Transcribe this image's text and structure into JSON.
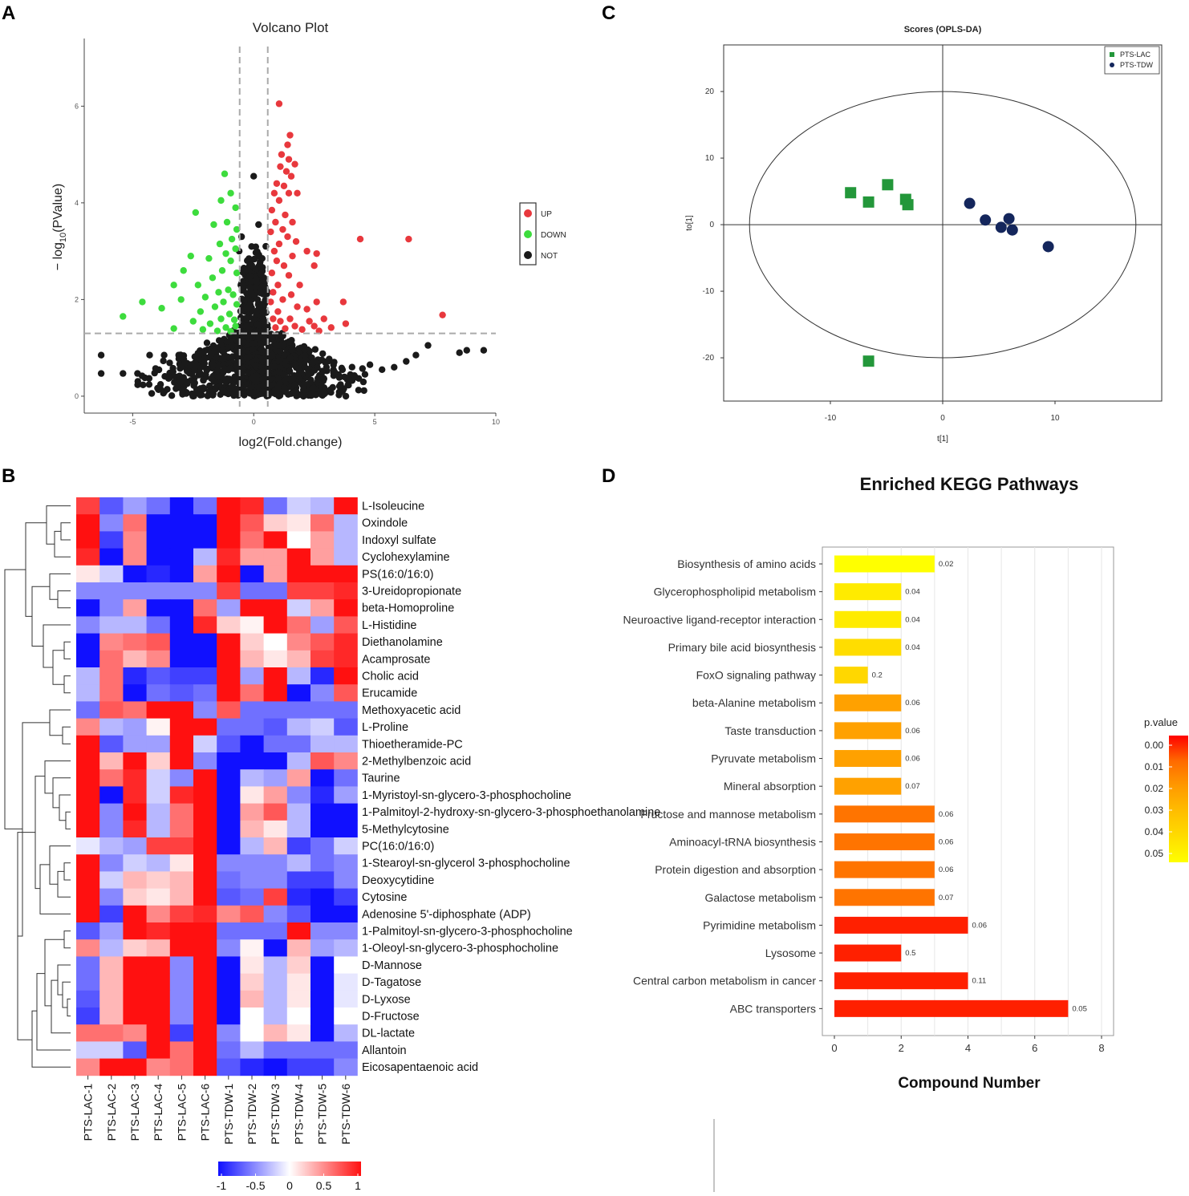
{
  "colors": {
    "up": "#e8383d",
    "down": "#3ddc3d",
    "not": "#1a1a1a",
    "lac": "#23973a",
    "tdw": "#14265c",
    "heat_low": "#1010ff",
    "heat_mid": "#ffffff",
    "heat_high": "#ff1010",
    "kegg_grad": [
      "#ff0000",
      "#ff6a00",
      "#ff9a00",
      "#ffbe00",
      "#ffdd00",
      "#ffff00"
    ]
  },
  "panels": {
    "a": "A",
    "b": "B",
    "c": "C",
    "d": "D"
  },
  "chart_data": [
    {
      "id": "volcano",
      "type": "scatter",
      "title": "Volcano Plot",
      "xlabel": "log2(Fold.change)",
      "ylabel_pre": "− log",
      "ylabel_sub": "10",
      "ylabel_post": "(PValue)",
      "xlim": [
        -7,
        10
      ],
      "ylim": [
        -0.35,
        7.4
      ],
      "xticks": [
        -5,
        0,
        5,
        10
      ],
      "yticks": [
        0,
        2,
        4,
        6
      ],
      "vlines": [
        -0.58,
        0.58
      ],
      "hline": 1.3,
      "legend": [
        "UP",
        "DOWN",
        "NOT"
      ],
      "up": [
        [
          1.05,
          6.05
        ],
        [
          1.5,
          5.4
        ],
        [
          1.4,
          5.2
        ],
        [
          1.15,
          5.0
        ],
        [
          1.45,
          4.9
        ],
        [
          1.1,
          4.75
        ],
        [
          1.35,
          4.65
        ],
        [
          1.7,
          4.8
        ],
        [
          1.55,
          4.55
        ],
        [
          0.95,
          4.4
        ],
        [
          1.25,
          4.35
        ],
        [
          1.8,
          4.2
        ],
        [
          0.85,
          4.2
        ],
        [
          1.45,
          4.2
        ],
        [
          1.05,
          4.05
        ],
        [
          0.75,
          3.85
        ],
        [
          1.3,
          3.75
        ],
        [
          1.6,
          3.6
        ],
        [
          0.9,
          3.6
        ],
        [
          1.2,
          3.45
        ],
        [
          0.7,
          3.4
        ],
        [
          1.4,
          3.3
        ],
        [
          1.75,
          3.2
        ],
        [
          1.05,
          3.15
        ],
        [
          0.85,
          3.0
        ],
        [
          2.2,
          3.0
        ],
        [
          2.6,
          2.95
        ],
        [
          1.6,
          2.9
        ],
        [
          1.25,
          2.7
        ],
        [
          0.95,
          2.8
        ],
        [
          4.4,
          3.25
        ],
        [
          6.4,
          3.25
        ],
        [
          2.5,
          2.7
        ],
        [
          0.75,
          2.55
        ],
        [
          1.45,
          2.5
        ],
        [
          1.0,
          2.3
        ],
        [
          1.9,
          2.3
        ],
        [
          0.8,
          2.15
        ],
        [
          1.55,
          2.1
        ],
        [
          1.2,
          2.0
        ],
        [
          2.6,
          1.95
        ],
        [
          0.7,
          1.95
        ],
        [
          1.8,
          1.85
        ],
        [
          2.2,
          1.8
        ],
        [
          1.0,
          1.75
        ],
        [
          3.7,
          1.95
        ],
        [
          7.8,
          1.68
        ],
        [
          1.5,
          1.6
        ],
        [
          2.3,
          1.55
        ],
        [
          0.8,
          1.6
        ],
        [
          1.1,
          1.55
        ],
        [
          2.9,
          1.6
        ],
        [
          1.7,
          1.45
        ],
        [
          2.5,
          1.45
        ],
        [
          1.3,
          1.4
        ],
        [
          3.2,
          1.42
        ],
        [
          2.0,
          1.38
        ],
        [
          3.8,
          1.5
        ],
        [
          0.9,
          1.42
        ],
        [
          2.7,
          1.35
        ]
      ],
      "down": [
        [
          -1.2,
          4.6
        ],
        [
          -0.95,
          4.2
        ],
        [
          -1.35,
          4.05
        ],
        [
          -0.75,
          3.9
        ],
        [
          -2.4,
          3.8
        ],
        [
          -1.1,
          3.6
        ],
        [
          -1.65,
          3.55
        ],
        [
          -0.7,
          3.45
        ],
        [
          -0.9,
          3.25
        ],
        [
          -1.4,
          3.15
        ],
        [
          -0.75,
          3.05
        ],
        [
          -1.15,
          2.95
        ],
        [
          -2.6,
          2.9
        ],
        [
          -1.85,
          2.85
        ],
        [
          -0.95,
          2.8
        ],
        [
          -1.3,
          2.6
        ],
        [
          -2.9,
          2.6
        ],
        [
          -0.7,
          2.55
        ],
        [
          -1.7,
          2.45
        ],
        [
          -3.3,
          2.3
        ],
        [
          -2.3,
          2.3
        ],
        [
          -1.05,
          2.2
        ],
        [
          -1.45,
          2.15
        ],
        [
          -0.85,
          2.1
        ],
        [
          -2.0,
          2.05
        ],
        [
          -3.0,
          2.0
        ],
        [
          -1.25,
          1.95
        ],
        [
          -0.7,
          1.9
        ],
        [
          -4.6,
          1.95
        ],
        [
          -1.6,
          1.85
        ],
        [
          -2.2,
          1.75
        ],
        [
          -3.8,
          1.82
        ],
        [
          -1.0,
          1.7
        ],
        [
          -1.35,
          1.6
        ],
        [
          -0.8,
          1.58
        ],
        [
          -5.4,
          1.65
        ],
        [
          -2.5,
          1.55
        ],
        [
          -1.8,
          1.5
        ],
        [
          -0.75,
          1.45
        ],
        [
          -1.15,
          1.42
        ],
        [
          -3.3,
          1.4
        ],
        [
          -2.1,
          1.38
        ],
        [
          -1.5,
          1.35
        ],
        [
          -0.95,
          1.34
        ]
      ],
      "not_fixed": [
        [
          0.0,
          4.55
        ],
        [
          -0.5,
          3.3
        ],
        [
          -0.35,
          2.6
        ],
        [
          0.35,
          2.85
        ],
        [
          -0.15,
          2.25
        ],
        [
          0.1,
          2.4
        ],
        [
          -0.6,
          3.0
        ],
        [
          0.5,
          3.1
        ],
        [
          0.2,
          3.55
        ],
        [
          -6.3,
          0.85
        ],
        [
          -6.3,
          0.47
        ],
        [
          -5.4,
          0.47
        ],
        [
          -4.8,
          0.47
        ],
        [
          -4.3,
          0.85
        ],
        [
          -3.7,
          0.85
        ],
        [
          -3.1,
          0.85
        ],
        [
          -2.6,
          0.65
        ],
        [
          5.3,
          0.55
        ],
        [
          5.8,
          0.6
        ],
        [
          6.3,
          0.72
        ],
        [
          6.7,
          0.85
        ],
        [
          7.2,
          1.05
        ],
        [
          9.5,
          0.95
        ],
        [
          8.8,
          0.95
        ],
        [
          8.5,
          0.9
        ],
        [
          4.8,
          0.65
        ]
      ]
    },
    {
      "id": "oplsda",
      "type": "scatter",
      "title": "Scores (OPLS-DA)",
      "xlabel": "t[1]",
      "ylabel": "to[1]",
      "xlim": [
        -19.5,
        19.5
      ],
      "ylim": [
        -26.5,
        27
      ],
      "xticks": [
        -10,
        0,
        10
      ],
      "yticks": [
        -20,
        -10,
        0,
        10,
        20
      ],
      "ellipse": {
        "rx": 17.2,
        "ry": 20.0
      },
      "legend": [
        "PTS-LAC",
        "PTS-TDW"
      ],
      "series": [
        {
          "name": "PTS-LAC",
          "points": [
            [
              -8.2,
              4.8
            ],
            [
              -6.6,
              3.4
            ],
            [
              -4.9,
              6.0
            ],
            [
              -3.3,
              3.8
            ],
            [
              -3.1,
              3.0
            ],
            [
              -6.6,
              -20.5
            ]
          ]
        },
        {
          "name": "PTS-TDW",
          "points": [
            [
              2.4,
              3.2
            ],
            [
              3.8,
              0.7
            ],
            [
              5.9,
              0.9
            ],
            [
              5.2,
              -0.4
            ],
            [
              6.2,
              -0.8
            ],
            [
              9.4,
              -3.3
            ]
          ]
        }
      ]
    },
    {
      "id": "heatmap",
      "type": "heatmap",
      "scale_ticks": [
        "-1",
        "-0.5",
        "0",
        "0.5",
        "1"
      ],
      "columns": [
        "PTS-LAC-1",
        "PTS-LAC-2",
        "PTS-LAC-3",
        "PTS-LAC-4",
        "PTS-LAC-5",
        "PTS-LAC-6",
        "PTS-TDW-1",
        "PTS-TDW-2",
        "PTS-TDW-3",
        "PTS-TDW-4",
        "PTS-TDW-5",
        "PTS-TDW-6"
      ],
      "rows": [
        "L-Isoleucine",
        "Oxindole",
        "Indoxyl sulfate",
        "Cyclohexylamine",
        "PS(16:0/16:0)",
        "3-Ureidopropionate",
        "beta-Homoproline",
        "L-Histidine",
        "Diethanolamine",
        "Acamprosate",
        "Cholic acid",
        "Erucamide",
        "Methoxyacetic acid",
        "L-Proline",
        "Thioetheramide-PC",
        "2-Methylbenzoic acid",
        "Taurine",
        "1-Myristoyl-sn-glycero-3-phosphocholine",
        "1-Palmitoyl-2-hydroxy-sn-glycero-3-phosphoethanolamine",
        "5-Methylcytosine",
        "PC(16:0/16:0)",
        "1-Stearoyl-sn-glycerol 3-phosphocholine",
        "Deoxycytidine",
        "Cytosine",
        "Adenosine 5'-diphosphate (ADP)",
        "1-Palmitoyl-sn-glycero-3-phosphocholine",
        "1-Oleoyl-sn-glycero-3-phosphocholine",
        "D-Mannose",
        "D-Tagatose",
        "D-Lyxose",
        "D-Fructose",
        "DL-lactate",
        "Allantoin",
        "Eicosapentaenoic acid"
      ],
      "values": [
        [
          0.8,
          -0.7,
          -0.4,
          -0.6,
          -1,
          -0.6,
          1,
          0.9,
          -0.6,
          -0.2,
          -0.3,
          1
        ],
        [
          1,
          -0.5,
          0.6,
          -1,
          -1,
          -1,
          1,
          0.7,
          0.2,
          0.1,
          0.6,
          -0.3
        ],
        [
          1,
          -0.8,
          0.5,
          -1,
          -1,
          -1,
          1,
          0.6,
          1,
          0,
          0.4,
          -0.3
        ],
        [
          0.9,
          -1,
          0.5,
          -1,
          -1,
          -0.3,
          0.9,
          0.4,
          0.4,
          1,
          0.4,
          -0.3
        ],
        [
          0.1,
          -0.2,
          -1,
          -0.9,
          -1,
          0.4,
          1,
          -1,
          0.4,
          1,
          1,
          1
        ],
        [
          -0.5,
          -0.5,
          -0.5,
          -0.5,
          -0.5,
          -0.5,
          0.8,
          -0.6,
          -0.6,
          0.8,
          0.8,
          0.9
        ],
        [
          -1,
          -0.5,
          0.4,
          -1,
          -1,
          0.6,
          -0.4,
          1,
          1,
          -0.2,
          0.4,
          1
        ],
        [
          -0.5,
          -0.3,
          -0.3,
          -0.6,
          -1,
          0.9,
          0.2,
          0.05,
          1,
          0.6,
          -0.4,
          0.7
        ],
        [
          -1,
          0.5,
          0.6,
          0.7,
          -1,
          -1,
          1,
          0.2,
          0,
          0.5,
          0.7,
          0.9
        ],
        [
          -1,
          0.6,
          0.3,
          0.5,
          -1,
          -1,
          1,
          0.3,
          0.1,
          0.3,
          0.8,
          0.9
        ],
        [
          -0.3,
          0.6,
          -0.9,
          -0.7,
          -0.8,
          -0.8,
          1,
          -0.4,
          1,
          -0.3,
          -0.9,
          1
        ],
        [
          -0.3,
          0.6,
          -1,
          -0.6,
          -0.7,
          -0.6,
          1,
          0.6,
          1,
          -1,
          -0.5,
          0.7
        ],
        [
          -0.6,
          0.7,
          0.6,
          1,
          1,
          -0.5,
          0.7,
          -0.6,
          -0.6,
          -0.6,
          -0.6,
          -0.6
        ],
        [
          0.5,
          -0.3,
          -0.4,
          0.05,
          1,
          1,
          -0.6,
          -0.6,
          -0.7,
          -0.3,
          -0.2,
          -0.7
        ],
        [
          1,
          -0.7,
          -0.4,
          -0.4,
          1,
          -0.2,
          -0.7,
          -1,
          -0.6,
          -0.6,
          -0.3,
          -0.3
        ],
        [
          1,
          0.3,
          1,
          0.2,
          1,
          -0.5,
          -1,
          -1,
          -1,
          -0.3,
          0.7,
          0.5
        ],
        [
          1,
          0.6,
          0.9,
          -0.2,
          -0.5,
          1,
          -1,
          -0.3,
          -0.4,
          0.4,
          -1,
          -0.6
        ],
        [
          1,
          -1,
          0.9,
          -0.2,
          0.9,
          1,
          -1,
          0.1,
          0.4,
          -0.5,
          -0.9,
          -0.4
        ],
        [
          1,
          -0.5,
          1,
          -0.3,
          0.6,
          1,
          -1,
          0.4,
          0.7,
          -0.3,
          -1,
          -1
        ],
        [
          1,
          -0.5,
          0.9,
          -0.3,
          0.6,
          1,
          -1,
          0.3,
          0.1,
          -0.3,
          -1,
          -1
        ],
        [
          -0.1,
          -0.3,
          -0.4,
          0.8,
          0.8,
          1,
          -1,
          -0.3,
          0.3,
          -0.8,
          -0.6,
          -0.2
        ],
        [
          1,
          -0.5,
          -0.2,
          -0.3,
          0.1,
          1,
          -0.5,
          -0.5,
          -0.5,
          -0.3,
          -0.6,
          -0.5
        ],
        [
          1,
          -0.2,
          0.3,
          0.2,
          0.3,
          1,
          -0.6,
          -0.5,
          -0.5,
          -0.8,
          -0.8,
          -0.5
        ],
        [
          1,
          -0.5,
          0.2,
          0.1,
          0.3,
          1,
          -0.7,
          -0.6,
          0.8,
          -0.9,
          -1,
          -0.8
        ],
        [
          1,
          -0.8,
          1,
          0.5,
          0.8,
          0.9,
          0.5,
          0.7,
          -0.5,
          -0.7,
          -1,
          -1
        ],
        [
          -0.7,
          -0.4,
          1,
          0.9,
          1,
          1,
          -0.6,
          -0.6,
          -0.6,
          1,
          -0.5,
          -0.5
        ],
        [
          0.5,
          -0.3,
          0.2,
          0.3,
          1,
          1,
          -0.5,
          0.05,
          -1,
          0.3,
          -0.4,
          -0.3
        ],
        [
          -0.6,
          0.3,
          1,
          1,
          -0.5,
          1,
          -1,
          0.1,
          -0.3,
          0.2,
          -1,
          0
        ],
        [
          -0.6,
          0.3,
          1,
          1,
          -0.5,
          1,
          -1,
          0.2,
          -0.3,
          0.1,
          -1,
          -0.1
        ],
        [
          -0.7,
          0.3,
          1,
          1,
          -0.5,
          1,
          -1,
          0.3,
          -0.3,
          0.1,
          -1,
          -0.1
        ],
        [
          -0.8,
          0.3,
          1,
          1,
          -0.5,
          1,
          -1,
          0,
          -0.3,
          0,
          -1,
          0
        ],
        [
          0.6,
          0.6,
          0.5,
          1,
          -0.8,
          1,
          -0.5,
          0,
          0.3,
          0.1,
          -1,
          -0.3
        ],
        [
          -0.2,
          -0.2,
          -0.7,
          1,
          0.6,
          1,
          -0.6,
          -0.3,
          -0.6,
          -0.6,
          -0.6,
          -0.6
        ],
        [
          0.5,
          1,
          1,
          0.5,
          0.6,
          1,
          -0.7,
          -0.9,
          -1,
          -0.8,
          -0.8,
          -0.5
        ]
      ]
    },
    {
      "id": "kegg",
      "type": "bar",
      "orientation": "horizontal",
      "title": "Enriched KEGG Pathways",
      "xlabel": "Compound Number",
      "xlim": [
        0,
        8
      ],
      "xticks": [
        0,
        2,
        4,
        6,
        8
      ],
      "legend_title": "p.value",
      "legend_ticks": [
        "0.00",
        "0.01",
        "0.02",
        "0.03",
        "0.04",
        "0.05"
      ],
      "categories": [
        "Biosynthesis of amino acids",
        "Glycerophospholipid metabolism",
        "Neuroactive ligand-receptor interaction",
        "Primary bile acid biosynthesis",
        "FoxO signaling pathway",
        "beta-Alanine metabolism",
        "Taste transduction",
        "Pyruvate metabolism",
        "Mineral absorption",
        "Fructose and mannose metabolism",
        "Aminoacyl-tRNA biosynthesis",
        "Protein digestion and absorption",
        "Galactose metabolism",
        "Pyrimidine metabolism",
        "Lysosome",
        "Central carbon metabolism in cancer",
        "ABC transporters"
      ],
      "values": [
        3,
        2,
        2,
        2,
        1,
        2,
        2,
        2,
        2,
        3,
        3,
        3,
        3,
        4,
        2,
        4,
        7
      ],
      "labels": [
        "0.02",
        "0.04",
        "0.04",
        "0.04",
        "0.2",
        "0.06",
        "0.06",
        "0.06",
        "0.07",
        "0.06",
        "0.06",
        "0.06",
        "0.07",
        "0.06",
        "0.5",
        "0.11",
        "0.05"
      ],
      "color_level": [
        0.05,
        0.044,
        0.044,
        0.04,
        0.038,
        0.022,
        0.022,
        0.022,
        0.022,
        0.012,
        0.012,
        0.012,
        0.012,
        0.003,
        0.003,
        0.003,
        0.003
      ]
    }
  ]
}
